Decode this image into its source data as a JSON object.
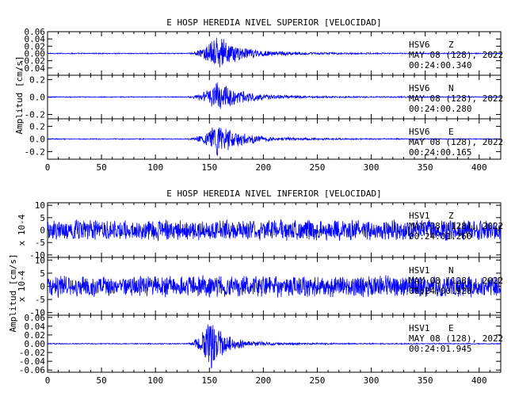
{
  "chart_data": [
    {
      "type": "line",
      "title": "E HOSP HEREDIA NIVEL SUPERIOR [VELOCIDAD]",
      "ylabel": "Amplitud [cm/s]",
      "xlabel": "",
      "xlim": [
        0,
        420
      ],
      "xticks": [
        "0",
        "50",
        "100",
        "150",
        "200",
        "250",
        "300",
        "350",
        "400"
      ],
      "grid": false,
      "line_color": "#0000ff",
      "series": [
        {
          "station": "HSV6",
          "component": "Z",
          "date_line": "MAY 08 (128), 2022",
          "time_line": "00:24:00.340",
          "ylim": [
            -0.06,
            0.06
          ],
          "yticks": [
            "0.06",
            "0.04",
            "0.02",
            "0.00",
            "-0.02",
            "-0.04"
          ],
          "noise": 0.0015,
          "onset": 128,
          "peak_time": 158,
          "peak_amp": 0.055,
          "decay": 0.06,
          "coda": 0.012
        },
        {
          "station": "HSV6",
          "component": "N",
          "date_line": "MAY 08 (128), 2022",
          "time_line": "00:24:00.280",
          "ylim": [
            -0.25,
            0.25
          ],
          "yticks": [
            "0.2",
            "0.0",
            "-0.2"
          ],
          "noise": 0.006,
          "onset": 128,
          "peak_time": 158,
          "peak_amp": 0.2,
          "decay": 0.055,
          "coda": 0.04
        },
        {
          "station": "HSV6",
          "component": "E",
          "date_line": "MAY 08 (128), 2022",
          "time_line": "00:24:00.165",
          "ylim": [
            -0.32,
            0.32
          ],
          "yticks": [
            "0.2",
            "0.0",
            "-0.2"
          ],
          "noise": 0.008,
          "onset": 128,
          "peak_time": 157,
          "peak_amp": 0.3,
          "decay": 0.055,
          "coda": 0.05
        }
      ]
    },
    {
      "type": "line",
      "title": "E HOSP HEREDIA NIVEL INFERIOR [VELOCIDAD]",
      "ylabel": "Amplitud [cm/s]",
      "xlabel": "",
      "xlim": [
        0,
        420
      ],
      "xticks": [
        "0",
        "50",
        "100",
        "150",
        "200",
        "250",
        "300",
        "350",
        "400"
      ],
      "grid": false,
      "line_color": "#0000ff",
      "series": [
        {
          "station": "HSV1",
          "component": "Z",
          "date_line": "MAY 08 (128), 2022",
          "time_line": "00:24:01.260",
          "scale_label": "x 10-4",
          "ylim": [
            -11,
            11
          ],
          "yticks": [
            "10",
            "5",
            "0",
            "-5",
            "-10"
          ],
          "noise": 4.5,
          "onset": 0,
          "peak_time": 0,
          "peak_amp": 0,
          "decay": 1,
          "coda": 0
        },
        {
          "station": "HSV1",
          "component": "N",
          "date_line": "MAY 08 (128), 2022",
          "time_line": "00:24:00.920",
          "scale_label": "x 10-4",
          "ylim": [
            -11,
            11
          ],
          "yticks": [
            "10",
            "5",
            "0",
            "-5",
            "-10"
          ],
          "noise": 4.5,
          "onset": 0,
          "peak_time": 0,
          "peak_amp": 0,
          "decay": 1,
          "coda": 0
        },
        {
          "station": "HSV1",
          "component": "E",
          "date_line": "MAY 08 (128), 2022",
          "time_line": "00:24:01.945",
          "ylim": [
            -0.065,
            0.065
          ],
          "yticks": [
            "0.06",
            "0.04",
            "0.02",
            "0.00",
            "-0.02",
            "-0.04",
            "-0.06"
          ],
          "noise": 0.0012,
          "onset": 128,
          "peak_time": 151,
          "peak_amp": 0.06,
          "decay": 0.075,
          "coda": 0.006
        }
      ]
    }
  ]
}
